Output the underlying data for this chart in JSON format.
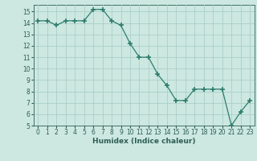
{
  "x": [
    0,
    1,
    2,
    3,
    4,
    5,
    6,
    7,
    8,
    9,
    10,
    11,
    12,
    13,
    14,
    15,
    16,
    17,
    18,
    19,
    20,
    21,
    22,
    23
  ],
  "y": [
    14.2,
    14.2,
    13.8,
    14.2,
    14.2,
    14.2,
    15.2,
    15.2,
    14.2,
    13.8,
    12.2,
    11.0,
    11.0,
    9.5,
    8.5,
    7.2,
    7.2,
    8.2,
    8.2,
    8.2,
    8.2,
    5.0,
    6.2,
    7.2
  ],
  "line_color": "#2e7d6e",
  "marker": "+",
  "marker_size": 4,
  "marker_lw": 1.2,
  "bg_color": "#cce8e0",
  "grid_color": "#aacfc7",
  "xlabel": "Humidex (Indice chaleur)",
  "ylim": [
    5,
    15.6
  ],
  "xlim": [
    -0.5,
    23.5
  ],
  "yticks": [
    5,
    6,
    7,
    8,
    9,
    10,
    11,
    12,
    13,
    14,
    15
  ],
  "xticks": [
    0,
    1,
    2,
    3,
    4,
    5,
    6,
    7,
    8,
    9,
    10,
    11,
    12,
    13,
    14,
    15,
    16,
    17,
    18,
    19,
    20,
    21,
    22,
    23
  ],
  "font_color": "#2e5e54",
  "tick_fontsize": 5.5,
  "label_fontsize": 6.5
}
